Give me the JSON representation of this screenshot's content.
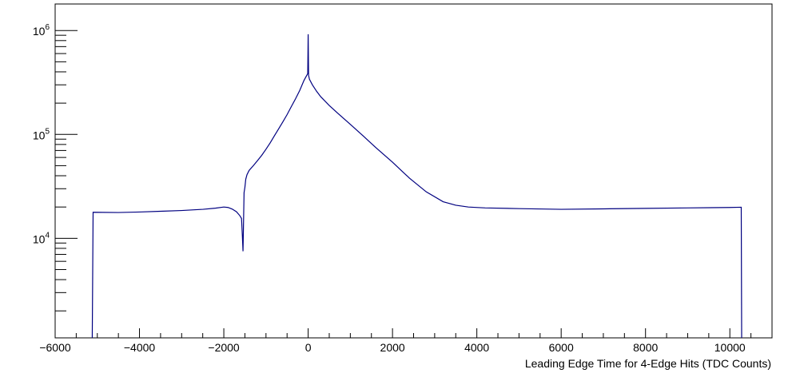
{
  "chart_data": {
    "type": "line",
    "title": "",
    "xlabel": "Leading Edge Time for 4-Edge Hits (TDC Counts)",
    "ylabel": "",
    "xlim": [
      -6000,
      11000
    ],
    "ylim": [
      1100,
      1800000
    ],
    "yscale": "log",
    "grid": false,
    "x_ticks": [
      -6000,
      -4000,
      -2000,
      0,
      2000,
      4000,
      6000,
      8000,
      10000
    ],
    "x_tick_labels": [
      "−6000",
      "−4000",
      "−2000",
      "0",
      "2000",
      "4000",
      "6000",
      "8000",
      "10000"
    ],
    "y_ticks": [
      {
        "base": "10",
        "exp": "4",
        "value": 10000
      },
      {
        "base": "10",
        "exp": "5",
        "value": 100000
      },
      {
        "base": "10",
        "exp": "6",
        "value": 1000000
      }
    ],
    "series": [
      {
        "color": "#000080",
        "x": [
          -5120,
          -5100,
          -4500,
          -4000,
          -3500,
          -3000,
          -2500,
          -2200,
          -2000,
          -1900,
          -1800,
          -1700,
          -1620,
          -1580,
          -1560,
          -1545,
          -1520,
          -1500,
          -1480,
          -1450,
          -1400,
          -1300,
          -1200,
          -1100,
          -1000,
          -900,
          -800,
          -700,
          -600,
          -500,
          -400,
          -300,
          -200,
          -100,
          -50,
          -10,
          0,
          10,
          30,
          100,
          200,
          300,
          500,
          700,
          1000,
          1300,
          1600,
          2000,
          2400,
          2800,
          3200,
          3500,
          3800,
          4200,
          5000,
          6000,
          7000,
          8000,
          9000,
          10000,
          10270,
          10280
        ],
        "y": [
          1100,
          17800,
          17700,
          17900,
          18200,
          18500,
          19000,
          19500,
          20000,
          19800,
          19100,
          18000,
          16500,
          15500,
          10500,
          7500,
          27500,
          31000,
          37000,
          41000,
          45000,
          50000,
          56000,
          63000,
          72000,
          83000,
          97000,
          113000,
          132000,
          155000,
          185000,
          220000,
          265000,
          330000,
          360000,
          385000,
          920000,
          370000,
          340000,
          300000,
          260000,
          230000,
          190000,
          160000,
          125000,
          97000,
          75000,
          54000,
          38000,
          28000,
          22500,
          20800,
          20000,
          19600,
          19300,
          19000,
          19200,
          19400,
          19600,
          19800,
          19900,
          1100
        ]
      }
    ]
  }
}
